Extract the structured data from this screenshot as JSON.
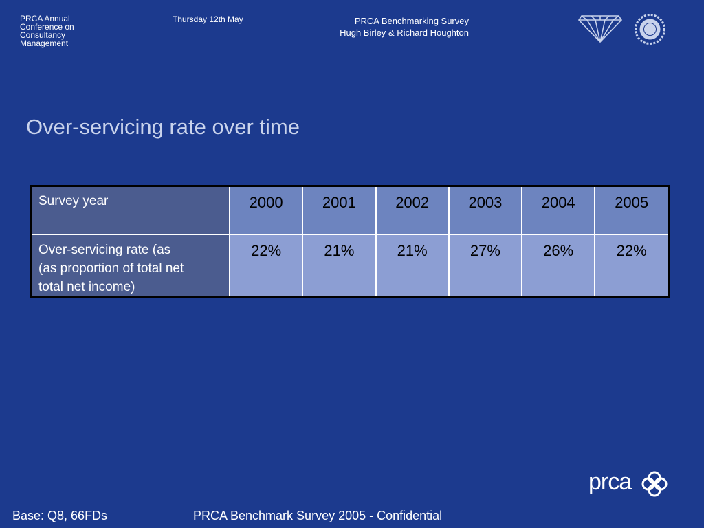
{
  "header": {
    "conference_lines": [
      "PRCA Annual",
      "Conference on",
      "Consultancy",
      "Management"
    ],
    "date": "Thursday 12th May",
    "survey_title": "PRCA Benchmarking Survey",
    "authors": "Hugh Birley & Richard Houghton"
  },
  "slide": {
    "title": "Over-servicing rate over time"
  },
  "table": {
    "header_label": "Survey year",
    "years": [
      "2000",
      "2001",
      "2002",
      "2003",
      "2004",
      "2005"
    ],
    "row_label_lines": [
      "Over-servicing rate (as",
      "(as proportion of total net",
      "total net income)"
    ],
    "values": [
      "22%",
      "21%",
      "21%",
      "27%",
      "26%",
      "22%"
    ]
  },
  "footer": {
    "base": "Base: Q8, 66FDs",
    "confidential": "PRCA Benchmark Survey 2005 - Confidential",
    "logo_text": "prca"
  },
  "colors": {
    "background": "#1c3a8e",
    "title": "#c9d3ec",
    "header_cells": "#6d84bf",
    "value_cells": "#8c9ed3",
    "label_cells": "#4b5c8f"
  },
  "icons": {
    "diamond": "diamond-logo-icon",
    "seal": "seal-logo-icon",
    "knot": "prca-knot-icon"
  }
}
